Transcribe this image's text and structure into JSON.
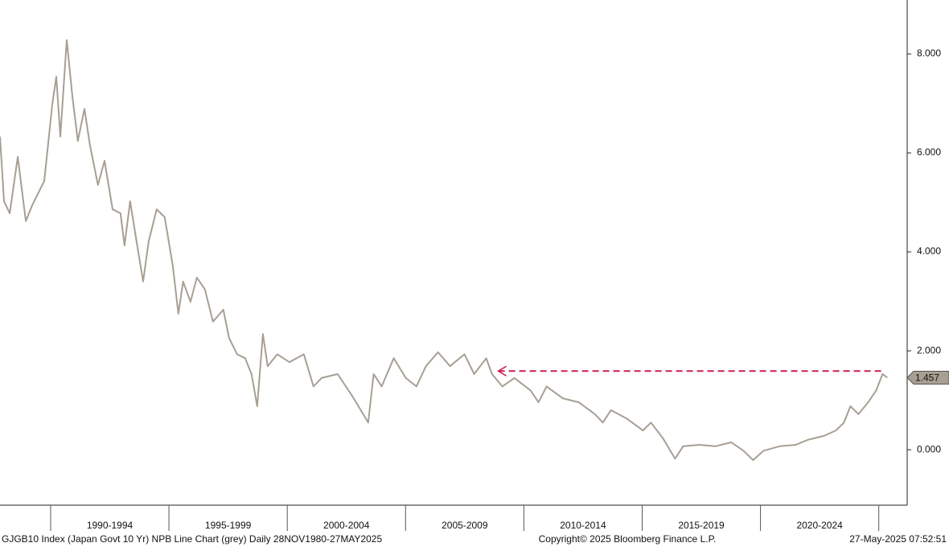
{
  "chart_data": {
    "type": "line",
    "series": [
      {
        "name": "GJGB10 Index",
        "color": "#a89f93",
        "x": [
          1987.86,
          1988.03,
          1988.27,
          1988.61,
          1988.95,
          1989.22,
          1989.73,
          1990.07,
          1990.24,
          1990.41,
          1990.68,
          1990.92,
          1991.15,
          1991.43,
          1991.66,
          1992.0,
          1992.28,
          1992.62,
          1992.95,
          1993.12,
          1993.36,
          1993.63,
          1993.91,
          1994.14,
          1994.48,
          1994.82,
          1995.16,
          1995.4,
          1995.6,
          1995.91,
          1996.18,
          1996.52,
          1996.86,
          1997.3,
          1997.54,
          1997.88,
          1998.22,
          1998.49,
          1998.73,
          1998.97,
          1999.17,
          1999.58,
          2000.09,
          2000.7,
          2001.11,
          2001.45,
          2002.13,
          2002.81,
          2003.42,
          2003.65,
          2003.99,
          2004.5,
          2005.01,
          2005.46,
          2005.86,
          2006.37,
          2006.88,
          2007.49,
          2007.9,
          2008.41,
          2008.65,
          2009.09,
          2009.6,
          2010.28,
          2010.62,
          2010.96,
          2011.64,
          2012.32,
          2013.0,
          2013.34,
          2013.68,
          2014.35,
          2015.03,
          2015.37,
          2015.88,
          2016.39,
          2016.73,
          2017.41,
          2018.09,
          2018.77,
          2019.28,
          2019.69,
          2020.13,
          2020.81,
          2021.49,
          2022.0,
          2022.68,
          2023.19,
          2023.53,
          2023.8,
          2024.14,
          2024.55,
          2024.89,
          2025.16,
          2025.36
        ],
        "values": [
          6.33,
          5.02,
          4.78,
          5.92,
          4.62,
          4.94,
          5.43,
          6.98,
          7.54,
          6.33,
          8.28,
          7.14,
          6.24,
          6.89,
          6.16,
          5.35,
          5.84,
          4.86,
          4.78,
          4.13,
          5.02,
          4.21,
          3.4,
          4.21,
          4.86,
          4.7,
          3.72,
          2.75,
          3.4,
          2.99,
          3.48,
          3.24,
          2.59,
          2.83,
          2.26,
          1.93,
          1.85,
          1.53,
          0.88,
          2.34,
          1.69,
          1.93,
          1.77,
          1.93,
          1.28,
          1.45,
          1.53,
          1.04,
          0.55,
          1.53,
          1.28,
          1.85,
          1.45,
          1.28,
          1.69,
          1.97,
          1.69,
          1.93,
          1.53,
          1.85,
          1.53,
          1.28,
          1.45,
          1.2,
          0.96,
          1.28,
          1.04,
          0.96,
          0.72,
          0.55,
          0.8,
          0.63,
          0.39,
          0.55,
          0.23,
          -0.18,
          0.07,
          0.1,
          0.07,
          0.15,
          -0.02,
          -0.21,
          -0.02,
          0.07,
          0.1,
          0.2,
          0.28,
          0.39,
          0.55,
          0.88,
          0.72,
          0.96,
          1.2,
          1.53,
          1.457
        ]
      }
    ],
    "xlim": [
      1987.86,
      2026.2
    ],
    "xticks": [
      1990,
      1995,
      2000,
      2005,
      2010,
      2015,
      2020,
      2025
    ],
    "periods": [
      "1990-1994",
      "1995-1999",
      "2000-2004",
      "2005-2009",
      "2010-2014",
      "2015-2019",
      "2020-2024"
    ],
    "ylim": [
      -1.12,
      9.09
    ],
    "yticks": [
      {
        "value": 0,
        "label": "0.000"
      },
      {
        "value": 2,
        "label": "2.000"
      },
      {
        "value": 4,
        "label": "4.000"
      },
      {
        "value": 6,
        "label": "6.000"
      },
      {
        "value": 8,
        "label": "8.000"
      }
    ],
    "reference_line": {
      "value": 1.59,
      "from": 2008.92,
      "to": 2025.22,
      "color": "#cc1f4e"
    },
    "footer_left": "GJGB10 Index (Japan Govt 10 Yr) NPB Line Chart (grey)  Daily 28NOV1980-27MAY2025",
    "footer_center": "Copyright© 2025 Bloomberg Finance L.P.",
    "footer_right": "27-May-2025 07:52:51"
  }
}
